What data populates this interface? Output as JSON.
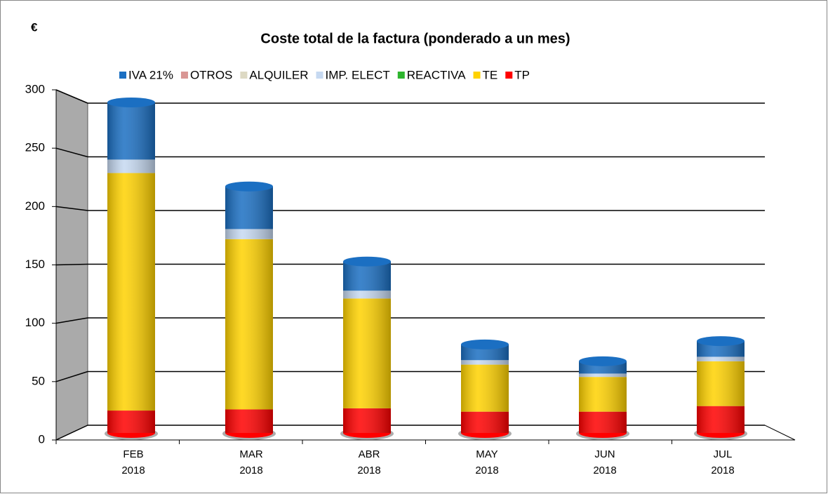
{
  "chart_data": {
    "type": "bar",
    "stacked": true,
    "title": "Coste total de la factura (ponderado a un mes)",
    "y_label": "€",
    "categories": [
      "FEB\n2018",
      "MAR\n2018",
      "ABR\n2018",
      "MAY\n2018",
      "JUN\n2018",
      "JUL\n2018"
    ],
    "series": [
      {
        "name": "IVA 21%",
        "color": "#1b6fc2",
        "values": [
          51,
          38,
          26,
          14,
          11,
          14
        ]
      },
      {
        "name": "OTROS",
        "color": "#d99694",
        "values": [
          0,
          0,
          0,
          0,
          0,
          0
        ]
      },
      {
        "name": "ALQUILER",
        "color": "#ddd9c3",
        "values": [
          0,
          0,
          0,
          0,
          0,
          0
        ]
      },
      {
        "name": "IMP. ELECT",
        "color": "#c6d9f1",
        "values": [
          12,
          9,
          7,
          4,
          3,
          4
        ]
      },
      {
        "name": "REACTIVA",
        "color": "#2db52d",
        "values": [
          0,
          0,
          0,
          0,
          0,
          0
        ]
      },
      {
        "name": "TE",
        "color": "#ffd200",
        "values": [
          212,
          152,
          98,
          42,
          31,
          40
        ]
      },
      {
        "name": "TP",
        "color": "#ff0000",
        "values": [
          20,
          21,
          22,
          19,
          19,
          24
        ]
      }
    ],
    "ylim": [
      0,
      300
    ],
    "yticks": [
      0,
      50,
      100,
      150,
      200,
      250,
      300
    ],
    "grid": true,
    "legend": "top"
  }
}
